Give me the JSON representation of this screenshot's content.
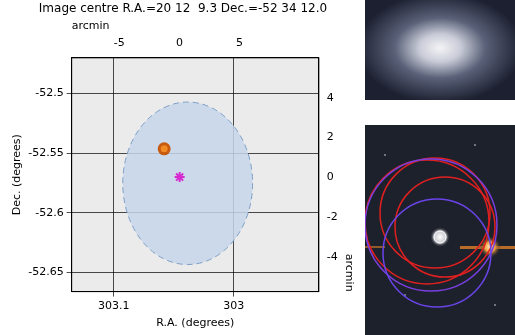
{
  "chart_data": {
    "type": "scatter",
    "title": "Image centre R.A.=20 12  9.3 Dec.=-52 34 12.0",
    "x_label": "R.A. (degrees)",
    "y_label": "Dec. (degrees)",
    "x2_label": "arcmin",
    "y2_label": "arcmin",
    "xlim": [
      303.135,
      302.929
    ],
    "xticks": [
      303.1,
      303
    ],
    "ylim": [
      -52.666,
      -52.47
    ],
    "yticks": [
      -52.65,
      -52.6,
      -52.55,
      -52.5
    ],
    "x2lim": [
      -8.96,
      11.6
    ],
    "x2ticks": [
      -5,
      0,
      5
    ],
    "y2lim": [
      -5.73,
      6.0
    ],
    "y2ticks": [
      -4,
      -2,
      0,
      2,
      4
    ],
    "grid": true,
    "ellipse": {
      "x": 303.0383,
      "y": -52.5752,
      "x_radius": 0.0541,
      "y_radius": 0.0681,
      "color": "#c6d6ea"
    },
    "series": [
      {
        "color": "#d62ad0",
        "marker": "star",
        "x": [
          303.045
        ],
        "y": [
          -52.57
        ]
      },
      {
        "color": "#f08a24",
        "marker": "circle",
        "x": [
          303.0579
        ],
        "y": [
          -52.5463
        ]
      }
    ]
  }
}
